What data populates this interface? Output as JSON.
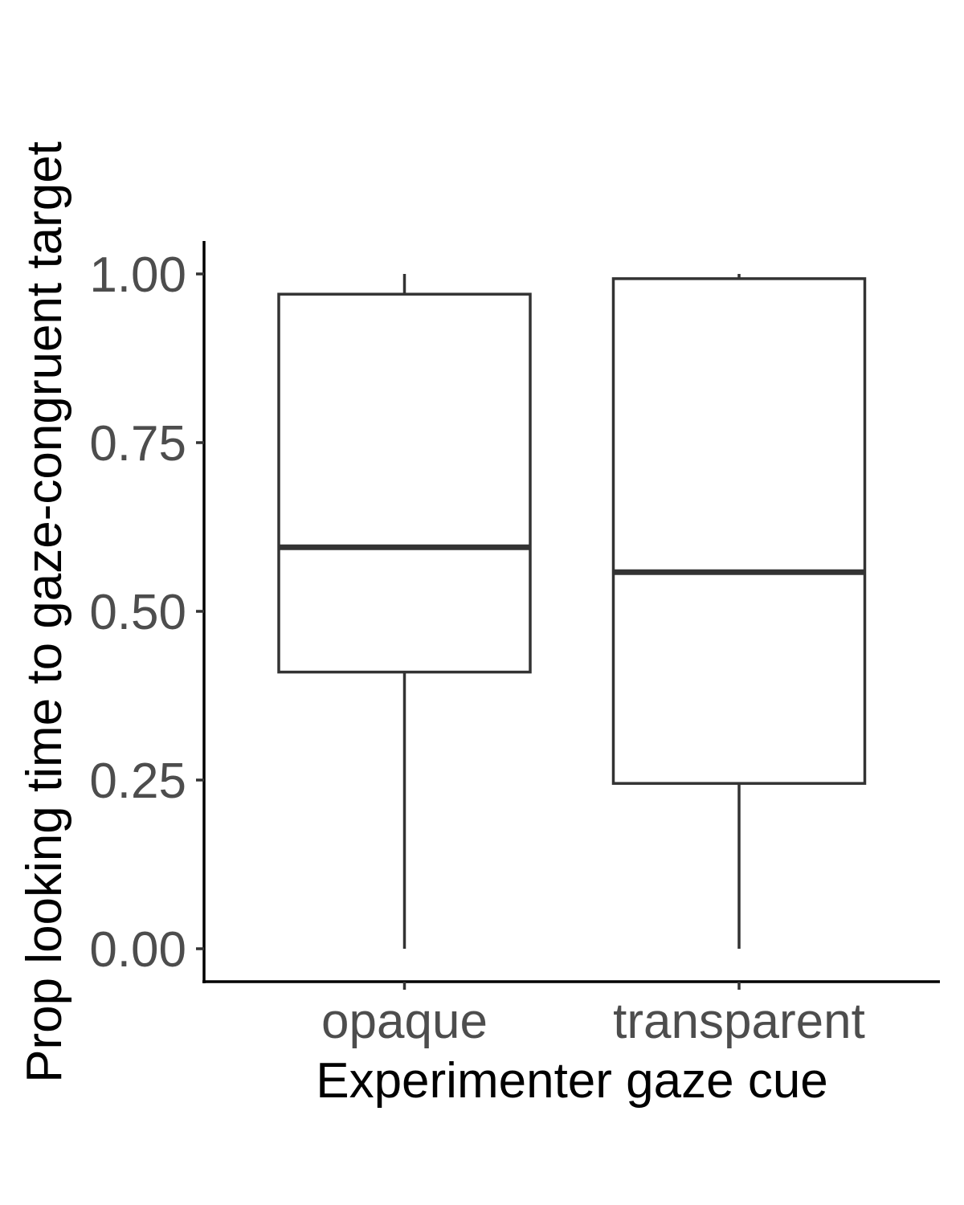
{
  "chart_data": {
    "type": "boxplot",
    "xlabel": "Experimenter gaze cue",
    "ylabel": "Prop looking time to gaze-congruent target",
    "categories": [
      "opaque",
      "transparent"
    ],
    "ylim": [
      -0.05,
      1.05
    ],
    "yticks": [
      0.0,
      0.25,
      0.5,
      0.75,
      1.0
    ],
    "ytick_labels": [
      "0.00",
      "0.25",
      "0.50",
      "0.75",
      "1.00"
    ],
    "boxes": [
      {
        "category": "opaque",
        "min": 0.0,
        "q1": 0.41,
        "median": 0.595,
        "q3": 0.97,
        "max": 1.0
      },
      {
        "category": "transparent",
        "min": 0.0,
        "q1": 0.245,
        "median": 0.558,
        "q3": 0.993,
        "max": 1.0
      }
    ],
    "grid": false,
    "colors": {
      "box_stroke": "#333333",
      "box_fill": "#ffffff",
      "tick_text": "#4d4d4d",
      "axis": "#000000"
    }
  }
}
